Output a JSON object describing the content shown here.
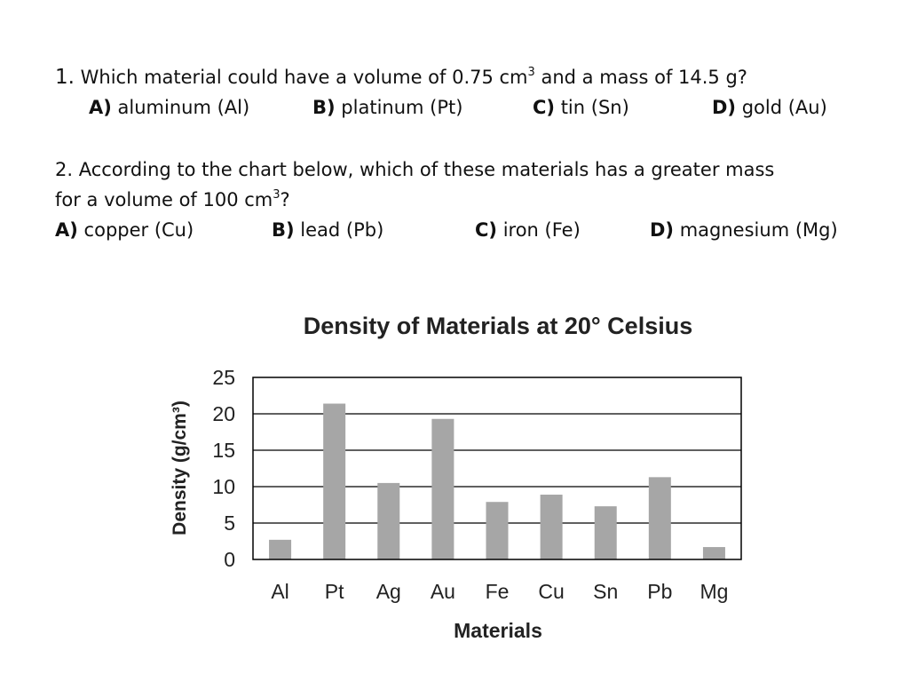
{
  "question1": {
    "number": "1.",
    "text_before": "Which material could have a volume of 0.75 cm",
    "superscript": "3",
    "text_after": " and a mass of 14.5 g?",
    "options": [
      {
        "letter": "A)",
        "text": "aluminum (Al)"
      },
      {
        "letter": "B)",
        "text": "platinum (Pt)"
      },
      {
        "letter": "C)",
        "text": "tin (Sn)"
      },
      {
        "letter": "D)",
        "text": "gold (Au)"
      }
    ]
  },
  "question2": {
    "line1": "2. According to the chart below, which of these materials has a greater mass",
    "line2_before": "for a volume of 100 cm",
    "superscript": "3",
    "line2_after": "?",
    "options": [
      {
        "letter": "A)",
        "text": "copper (Cu)"
      },
      {
        "letter": "B)",
        "text": "lead (Pb)"
      },
      {
        "letter": "C)",
        "text": "iron (Fe)"
      },
      {
        "letter": "D)",
        "text": "magnesium (Mg)"
      }
    ]
  },
  "chart_data": {
    "type": "bar",
    "title": "Density of Materials at 20° Celsius",
    "xlabel": "Materials",
    "ylabel": "Density (g/cm³)",
    "categories": [
      "Al",
      "Pt",
      "Ag",
      "Au",
      "Fe",
      "Cu",
      "Sn",
      "Pb",
      "Mg"
    ],
    "values": [
      2.7,
      21.4,
      10.5,
      19.3,
      7.9,
      8.9,
      7.3,
      11.3,
      1.7
    ],
    "ylim": [
      0,
      25
    ],
    "yticks": [
      0,
      5,
      10,
      15,
      20,
      25
    ],
    "grid": true,
    "bar_color": "#a6a6a6",
    "grid_color": "#000000"
  }
}
